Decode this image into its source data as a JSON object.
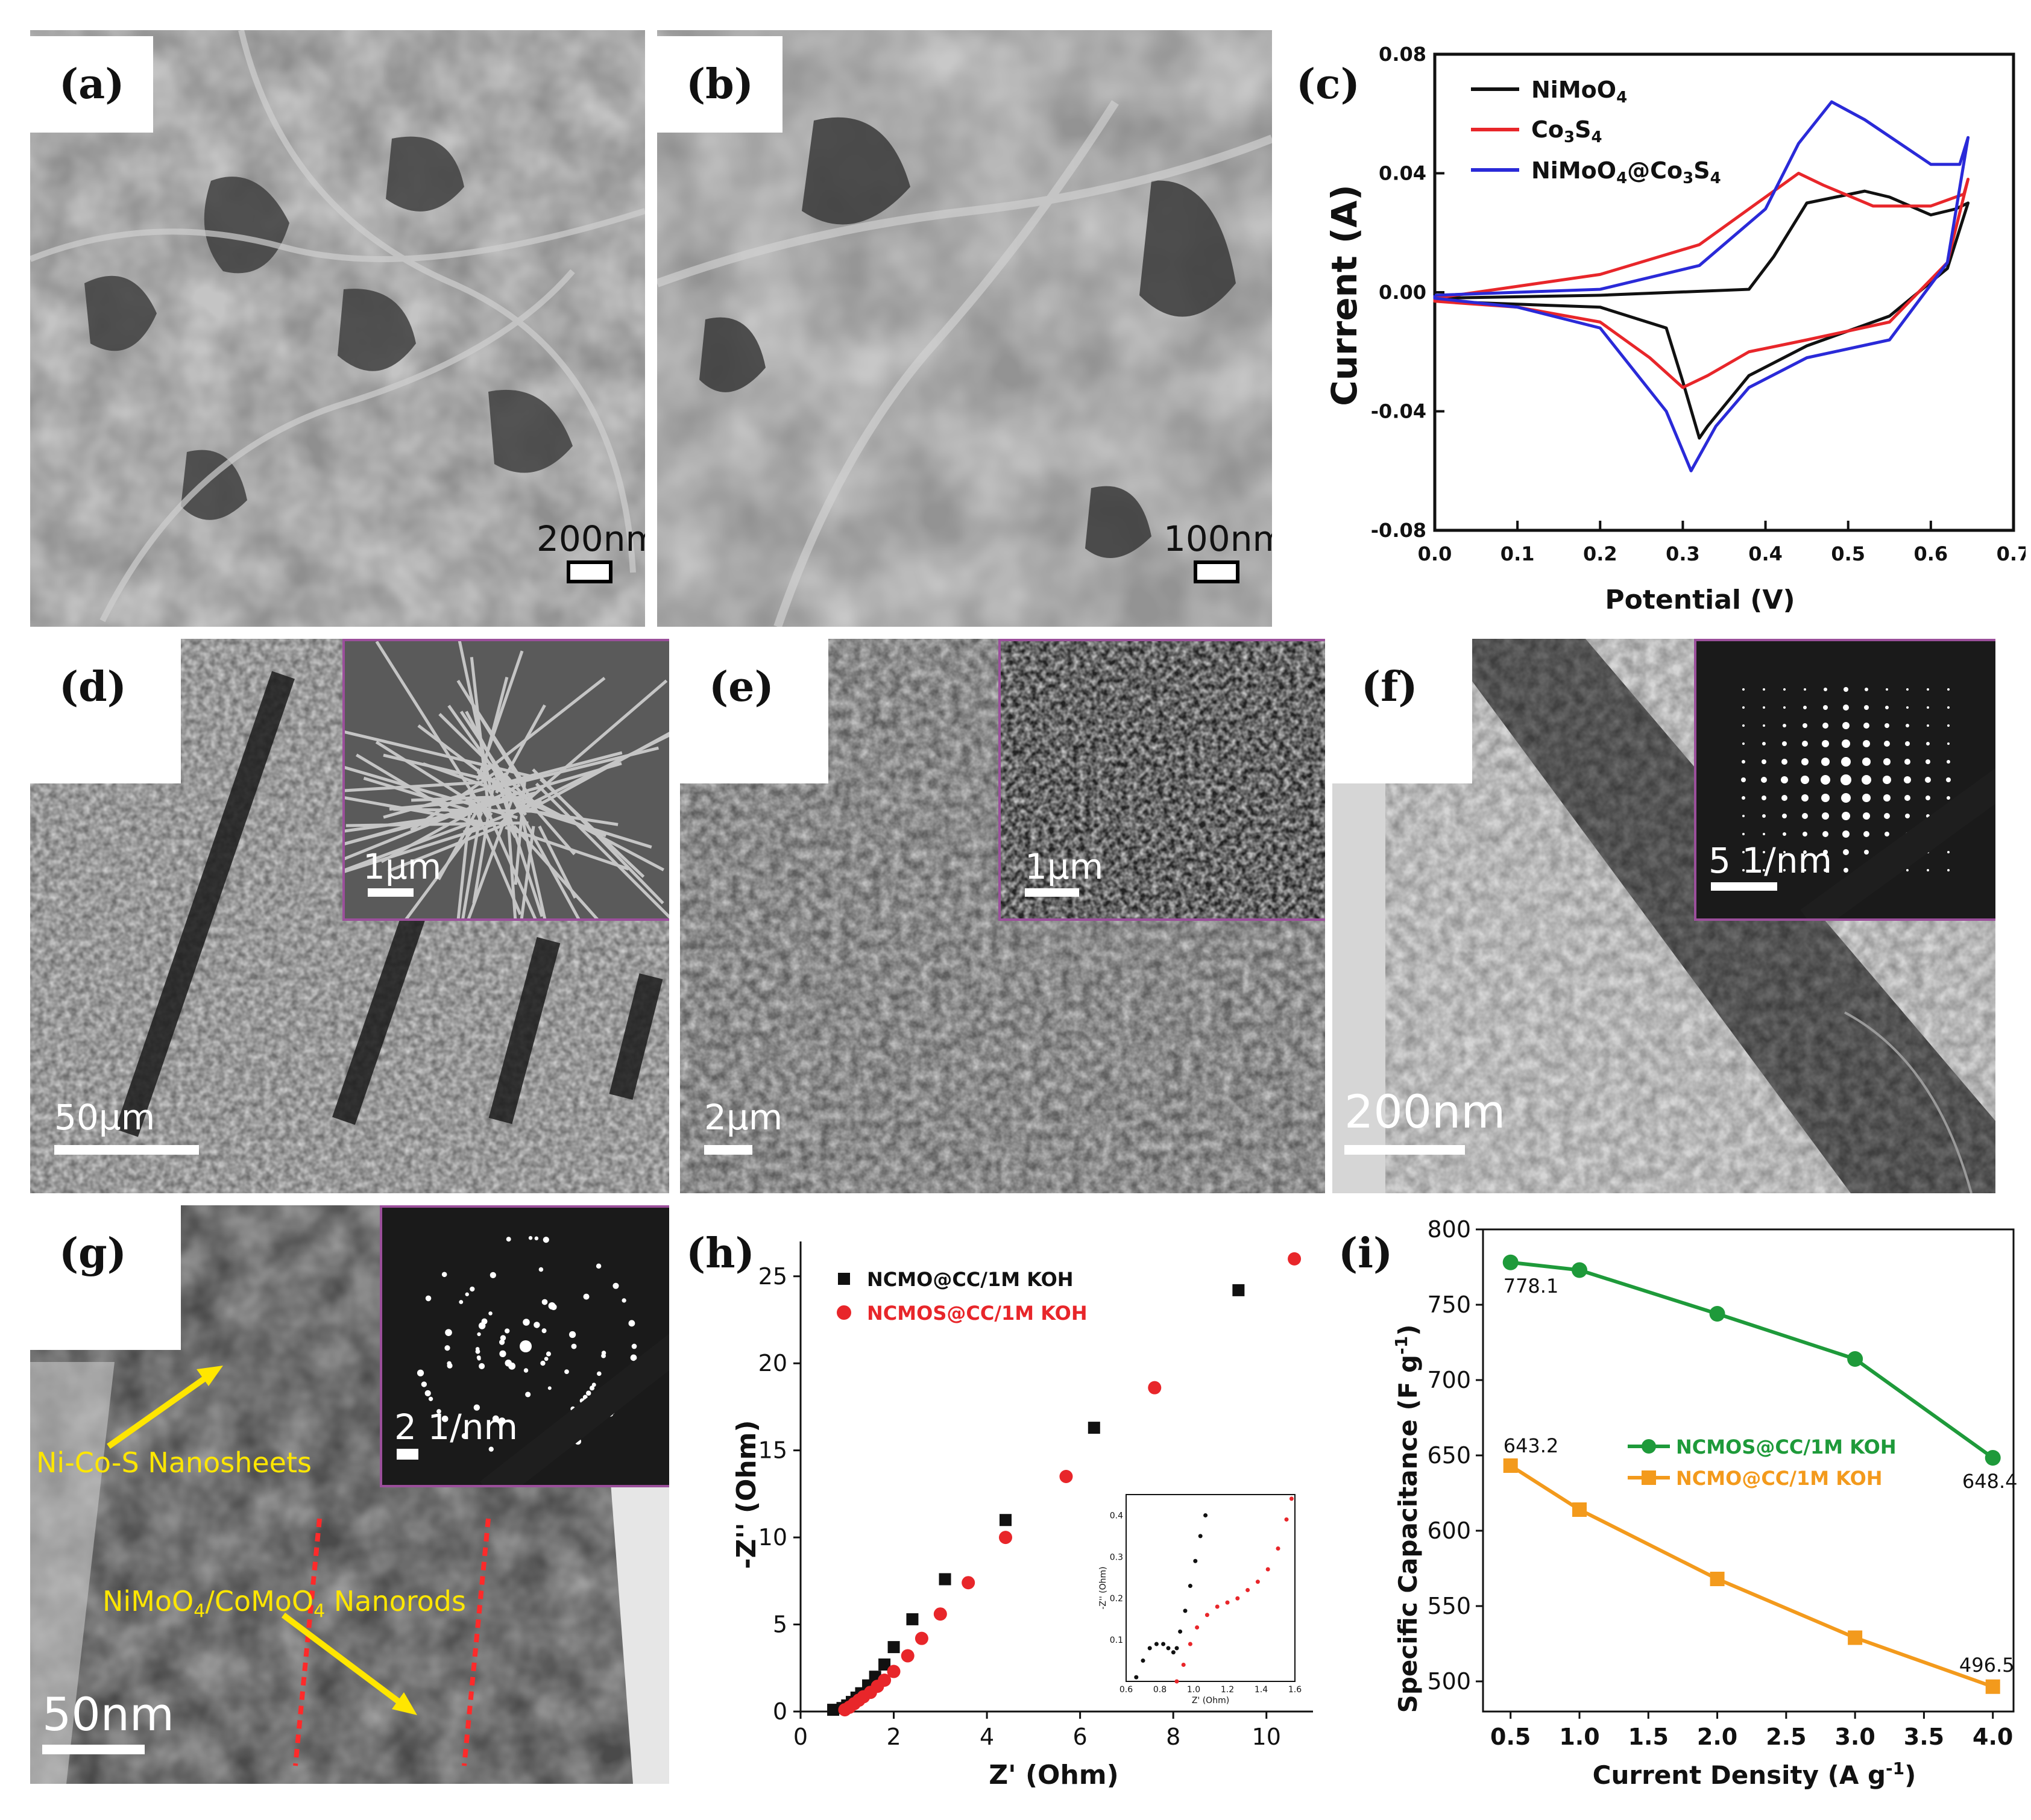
{
  "panels": {
    "a": {
      "label": "(a)",
      "scale": "200nm"
    },
    "b": {
      "label": "(b)",
      "scale": "100nm"
    },
    "c": {
      "label": "(c)"
    },
    "d": {
      "label": "(d)",
      "scale": "50μm",
      "inset_scale": "1μm"
    },
    "e": {
      "label": "(e)",
      "scale": "2μm",
      "inset_scale": "1μm"
    },
    "f": {
      "label": "(f)",
      "scale": "200nm",
      "inset_scale": "5 1/nm"
    },
    "g": {
      "label": "(g)",
      "scale": "50nm",
      "inset_scale": "2 1/nm",
      "annotation_sheets": "Ni-Co-S Nanosheets",
      "annotation_rods": "NiMoO4/CoMoO4 Nanorods"
    },
    "h": {
      "label": "(h)"
    },
    "i": {
      "label": "(i)"
    }
  },
  "chart_data": [
    {
      "panel": "c",
      "type": "line",
      "xlabel": "Potential (V)",
      "ylabel": "Current (A)",
      "xlim": [
        0.0,
        0.7
      ],
      "ylim": [
        -0.08,
        0.08
      ],
      "xticks": [
        "0.0",
        "0.1",
        "0.2",
        "0.3",
        "0.4",
        "0.5",
        "0.6",
        "0.7"
      ],
      "yticks": [
        "0.08",
        "0.04",
        "0.00",
        "-0.04",
        "-0.08"
      ],
      "legend_position": "top-left",
      "series": [
        {
          "name": "NiMoO4",
          "color": "#111111",
          "x": [
            0.0,
            0.2,
            0.38,
            0.41,
            0.45,
            0.52,
            0.55,
            0.6,
            0.63,
            0.645,
            0.62,
            0.55,
            0.45,
            0.38,
            0.33,
            0.32,
            0.3,
            0.28,
            0.2,
            0.0
          ],
          "y": [
            -0.002,
            -0.001,
            0.001,
            0.012,
            0.03,
            0.034,
            0.032,
            0.026,
            0.028,
            0.03,
            0.008,
            -0.008,
            -0.018,
            -0.028,
            -0.045,
            -0.049,
            -0.03,
            -0.012,
            -0.005,
            -0.003
          ]
        },
        {
          "name": "Co3S4",
          "color": "#e8262a",
          "x": [
            0.0,
            0.2,
            0.32,
            0.4,
            0.44,
            0.47,
            0.53,
            0.6,
            0.64,
            0.645,
            0.62,
            0.55,
            0.45,
            0.38,
            0.33,
            0.3,
            0.26,
            0.2,
            0.1,
            0.0
          ],
          "y": [
            -0.002,
            0.006,
            0.016,
            0.032,
            0.04,
            0.036,
            0.029,
            0.029,
            0.033,
            0.038,
            0.01,
            -0.01,
            -0.016,
            -0.02,
            -0.028,
            -0.032,
            -0.022,
            -0.01,
            -0.005,
            -0.003
          ]
        },
        {
          "name": "NiMoO4@Co3S4",
          "color": "#2a2ad8",
          "x": [
            0.0,
            0.2,
            0.32,
            0.4,
            0.44,
            0.48,
            0.52,
            0.6,
            0.635,
            0.645,
            0.62,
            0.55,
            0.45,
            0.38,
            0.34,
            0.31,
            0.28,
            0.2,
            0.1,
            0.0
          ],
          "y": [
            -0.001,
            0.001,
            0.009,
            0.028,
            0.05,
            0.064,
            0.058,
            0.043,
            0.043,
            0.052,
            0.01,
            -0.016,
            -0.022,
            -0.032,
            -0.045,
            -0.06,
            -0.04,
            -0.012,
            -0.005,
            -0.002
          ]
        }
      ]
    },
    {
      "panel": "h",
      "type": "scatter",
      "xlabel": "Z' (Ohm)",
      "ylabel": "-Z'' (Ohm)",
      "xlim": [
        0,
        11
      ],
      "ylim": [
        0,
        27
      ],
      "xticks": [
        "0",
        "2",
        "4",
        "6",
        "8",
        "10"
      ],
      "yticks": [
        "0",
        "5",
        "10",
        "15",
        "20",
        "25"
      ],
      "legend_position": "top-left",
      "series": [
        {
          "name": "NCMO@CC/1M KOH",
          "color": "#111111",
          "marker": "square",
          "x": [
            0.7,
            0.9,
            1.0,
            1.1,
            1.2,
            1.3,
            1.45,
            1.6,
            1.8,
            2.0,
            2.4,
            3.1,
            4.4,
            6.3,
            9.4
          ],
          "y": [
            0.1,
            0.2,
            0.35,
            0.55,
            0.8,
            1.05,
            1.5,
            2.0,
            2.7,
            3.7,
            5.3,
            7.6,
            11.0,
            16.3,
            24.2
          ]
        },
        {
          "name": "NCMOS@CC/1M KOH",
          "color": "#e8262a",
          "marker": "circle",
          "x": [
            0.95,
            1.05,
            1.15,
            1.25,
            1.35,
            1.5,
            1.65,
            1.8,
            2.0,
            2.3,
            2.6,
            3.0,
            3.6,
            4.4,
            5.7,
            7.6,
            10.6
          ],
          "y": [
            0.1,
            0.25,
            0.45,
            0.65,
            0.85,
            1.1,
            1.45,
            1.8,
            2.3,
            3.2,
            4.2,
            5.6,
            7.4,
            10.0,
            13.5,
            18.6,
            26.0
          ]
        }
      ],
      "inset": {
        "xlabel": "Z' (Ohm)",
        "ylabel": "-Z'' (Ohm)",
        "xlim": [
          0.6,
          1.6
        ],
        "ylim": [
          0,
          0.45
        ],
        "xticks": [
          "0.6",
          "0.8",
          "1.0",
          "1.2",
          "1.4",
          "1.6"
        ],
        "yticks": [
          "0.1",
          "0.2",
          "0.3",
          "0.4"
        ],
        "series": [
          {
            "name": "NCMO@CC/1M KOH",
            "color": "#111111",
            "x": [
              0.66,
              0.7,
              0.74,
              0.78,
              0.82,
              0.85,
              0.88,
              0.9,
              0.92,
              0.95,
              0.98,
              1.01,
              1.04,
              1.07
            ],
            "y": [
              0.01,
              0.05,
              0.08,
              0.09,
              0.09,
              0.08,
              0.07,
              0.08,
              0.12,
              0.17,
              0.23,
              0.29,
              0.35,
              0.4
            ]
          },
          {
            "name": "NCMOS@CC/1M KOH",
            "color": "#e8262a",
            "x": [
              0.9,
              0.94,
              0.98,
              1.02,
              1.08,
              1.14,
              1.2,
              1.26,
              1.32,
              1.38,
              1.44,
              1.5,
              1.55,
              1.58
            ],
            "y": [
              0.0,
              0.04,
              0.09,
              0.13,
              0.16,
              0.18,
              0.19,
              0.2,
              0.22,
              0.24,
              0.27,
              0.32,
              0.39,
              0.44
            ]
          }
        ]
      }
    },
    {
      "panel": "i",
      "type": "line",
      "xlabel": "Current Density (A g⁻¹)",
      "ylabel": "Specific Capacitance (F g⁻¹)",
      "xlim": [
        0.5,
        4.0
      ],
      "ylim": [
        480,
        800
      ],
      "xticks": [
        "0.5",
        "1.0",
        "1.5",
        "2.0",
        "2.5",
        "3.0",
        "3.5",
        "4.0"
      ],
      "yticks": [
        "500",
        "550",
        "600",
        "650",
        "700",
        "750",
        "800"
      ],
      "legend_position": "center-right",
      "series": [
        {
          "name": "NCMOS@CC/1M KOH",
          "color": "#1e9a3a",
          "marker": "circle",
          "x": [
            0.5,
            1.0,
            2.0,
            3.0,
            4.0
          ],
          "y": [
            778.1,
            773,
            744,
            714,
            648.4
          ]
        },
        {
          "name": "NCMO@CC/1M KOH",
          "color": "#f39a1c",
          "marker": "square",
          "x": [
            0.5,
            1.0,
            2.0,
            3.0,
            4.0
          ],
          "y": [
            643.2,
            614,
            568,
            529,
            496.5
          ]
        }
      ],
      "data_labels": [
        "778.1",
        "643.2",
        "648.4",
        "496.5"
      ]
    }
  ]
}
